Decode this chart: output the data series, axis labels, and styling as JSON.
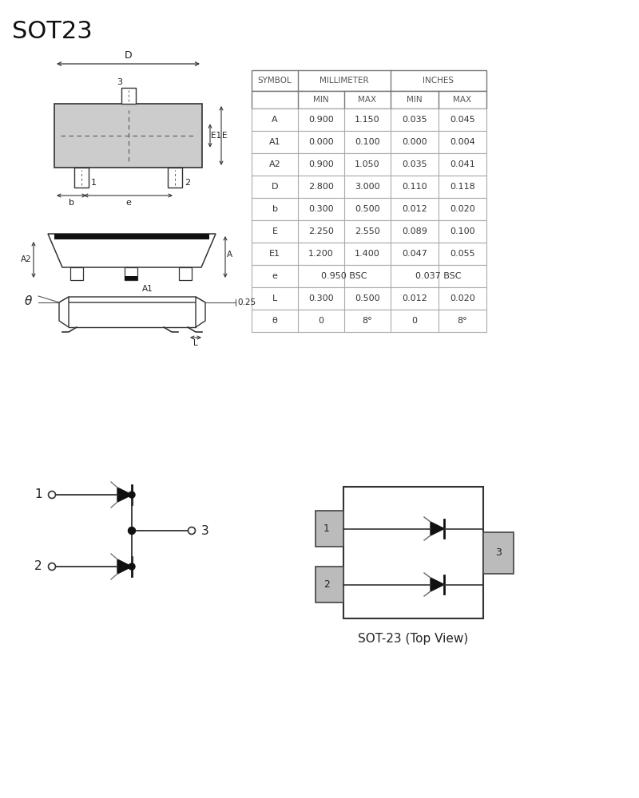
{
  "title": "SOT23",
  "bg_color": "#ffffff",
  "table": {
    "rows": [
      [
        "A",
        "0.900",
        "1.150",
        "0.035",
        "0.045"
      ],
      [
        "A1",
        "0.000",
        "0.100",
        "0.000",
        "0.004"
      ],
      [
        "A2",
        "0.900",
        "1.050",
        "0.035",
        "0.041"
      ],
      [
        "D",
        "2.800",
        "3.000",
        "0.110",
        "0.118"
      ],
      [
        "b",
        "0.300",
        "0.500",
        "0.012",
        "0.020"
      ],
      [
        "E",
        "2.250",
        "2.550",
        "0.089",
        "0.100"
      ],
      [
        "E1",
        "1.200",
        "1.400",
        "0.047",
        "0.055"
      ],
      [
        "e",
        "0.950 BSC",
        "",
        "0.037 BSC",
        ""
      ],
      [
        "L",
        "0.300",
        "0.500",
        "0.012",
        "0.020"
      ],
      [
        "θ",
        "0",
        "8°",
        "0",
        "8°"
      ]
    ]
  }
}
